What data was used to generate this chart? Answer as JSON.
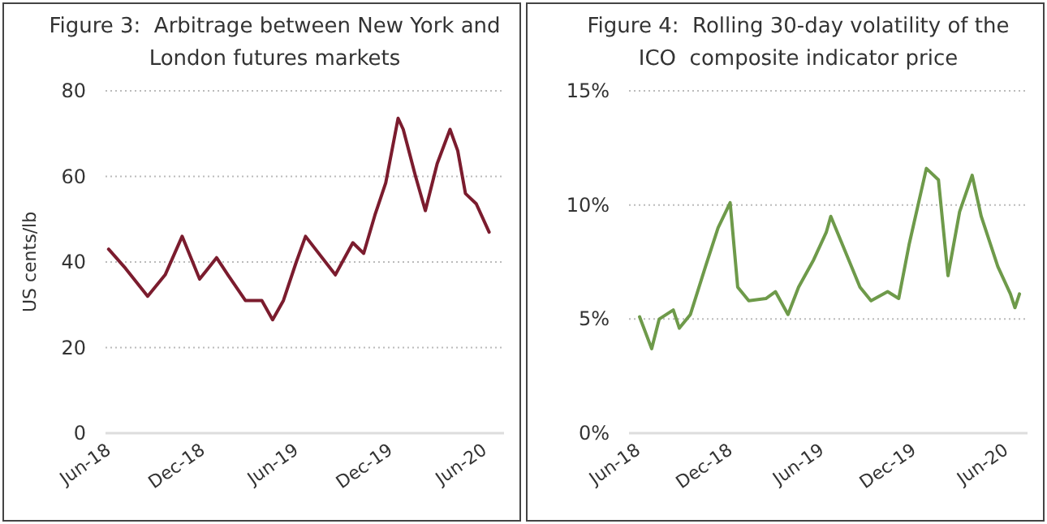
{
  "chart_data": [
    {
      "type": "line",
      "title": "Figure 3:  Arbitrage between New York and London futures markets",
      "ylabel": "US cents/lb",
      "xlim": [
        "2018-06-01",
        "2020-07-15"
      ],
      "ylim": [
        0,
        80
      ],
      "yticks": [
        0,
        20,
        40,
        60,
        80
      ],
      "xticks": [
        {
          "value": "2018-06-01",
          "label": "Jun-18"
        },
        {
          "value": "2018-12-01",
          "label": "Dec-18"
        },
        {
          "value": "2019-06-01",
          "label": "Jun-19"
        },
        {
          "value": "2019-12-01",
          "label": "Dec-19"
        },
        {
          "value": "2020-06-01",
          "label": "Jun-20"
        }
      ],
      "grid": "y",
      "series": [
        {
          "color": "#7b1c2e",
          "x": [
            "2018-06-07",
            "2018-07-10",
            "2018-08-22",
            "2018-09-25",
            "2018-10-28",
            "2018-12-01",
            "2019-01-03",
            "2019-01-25",
            "2019-02-28",
            "2019-04-01",
            "2019-04-22",
            "2019-05-13",
            "2019-06-07",
            "2019-06-25",
            "2019-08-22",
            "2019-09-25",
            "2019-10-16",
            "2019-11-07",
            "2019-11-28",
            "2019-12-22",
            "2020-01-01",
            "2020-01-25",
            "2020-02-13",
            "2020-03-07",
            "2020-04-01",
            "2020-04-16",
            "2020-05-01",
            "2020-05-22",
            "2020-06-16"
          ],
          "values": [
            43,
            38.5,
            32,
            37,
            46,
            36,
            41,
            37,
            31,
            31,
            26.5,
            31,
            40,
            46,
            37,
            44.5,
            42,
            51,
            58.5,
            73.6,
            71,
            60,
            52,
            63,
            71,
            66,
            56,
            53.6,
            47
          ]
        }
      ]
    },
    {
      "type": "line",
      "title": "Figure 4:  Rolling 30-day volatility of the ICO  composite indicator price",
      "xlim": [
        "2018-05-20",
        "2020-07-20"
      ],
      "ylim": [
        0,
        15
      ],
      "yticks": [
        {
          "value": 0,
          "label": "0%"
        },
        {
          "value": 5,
          "label": "5%"
        },
        {
          "value": 10,
          "label": "10%"
        },
        {
          "value": 15,
          "label": "15%"
        }
      ],
      "xticks": [
        {
          "value": "2018-06-01",
          "label": "Jun-18"
        },
        {
          "value": "2018-12-01",
          "label": "Dec-18"
        },
        {
          "value": "2019-06-01",
          "label": "Jun-19"
        },
        {
          "value": "2019-12-01",
          "label": "Dec-19"
        },
        {
          "value": "2020-06-01",
          "label": "Jun-20"
        }
      ],
      "grid": "y",
      "series": [
        {
          "color": "#6e9a4a",
          "x": [
            "2018-06-10",
            "2018-07-04",
            "2018-07-19",
            "2018-08-16",
            "2018-08-28",
            "2018-09-19",
            "2018-10-19",
            "2018-11-13",
            "2018-12-07",
            "2018-12-22",
            "2019-01-13",
            "2019-02-16",
            "2019-03-07",
            "2019-04-01",
            "2019-04-22",
            "2019-05-22",
            "2019-06-16",
            "2019-06-25",
            "2019-08-22",
            "2019-09-13",
            "2019-10-16",
            "2019-11-07",
            "2019-11-28",
            "2020-01-01",
            "2020-01-25",
            "2020-02-13",
            "2020-03-07",
            "2020-04-01",
            "2020-04-19",
            "2020-05-22",
            "2020-06-16",
            "2020-06-25",
            "2020-07-04"
          ],
          "values": [
            5.1,
            3.7,
            5,
            5.4,
            4.6,
            5.2,
            7.3,
            9,
            10.1,
            6.4,
            5.8,
            5.9,
            6.2,
            5.2,
            6.4,
            7.6,
            8.8,
            9.5,
            6.4,
            5.8,
            6.2,
            5.9,
            8.3,
            11.6,
            11.1,
            6.9,
            9.7,
            11.3,
            9.5,
            7.3,
            6.1,
            5.5,
            6.1
          ]
        }
      ]
    }
  ]
}
